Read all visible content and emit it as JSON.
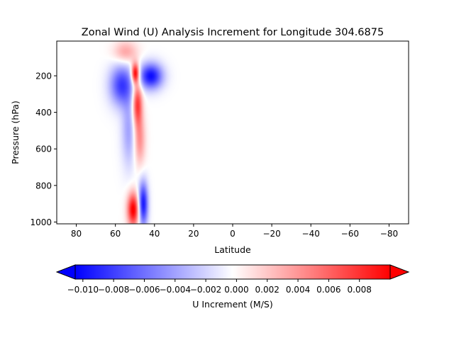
{
  "chart_data": {
    "type": "heatmap",
    "title": "Zonal Wind (U) Analysis Increment for Longitude 304.6875",
    "xlabel": "Latitude",
    "ylabel": "Pressure (hPa)",
    "xlim": [
      90,
      -90
    ],
    "ylim": [
      1010,
      10
    ],
    "x_ticks": [
      80,
      60,
      40,
      20,
      0,
      -20,
      -40,
      -60,
      -80
    ],
    "x_tick_labels": [
      "80",
      "60",
      "40",
      "20",
      "0",
      "−20",
      "−40",
      "−60",
      "−80"
    ],
    "y_ticks": [
      200,
      400,
      600,
      800,
      1000
    ],
    "y_tick_labels": [
      "200",
      "400",
      "600",
      "800",
      "1000"
    ],
    "colormap": "bwr",
    "colorbar": {
      "label": "U Increment (M/S)",
      "range": [
        -0.0105,
        0.01
      ],
      "extend": "both",
      "ticks": [
        -0.01,
        -0.008,
        -0.006,
        -0.004,
        -0.002,
        0.0,
        0.002,
        0.004,
        0.006,
        0.008
      ],
      "tick_labels": [
        "−0.010",
        "−0.008",
        "−0.006",
        "−0.004",
        "−0.002",
        "0.000",
        "0.002",
        "0.004",
        "0.006",
        "0.008"
      ]
    },
    "features": [
      {
        "sign": "positive",
        "lat_center": 50,
        "lat_width": 2.0,
        "p_center": 185,
        "p_width": 55,
        "peak": 0.012
      },
      {
        "sign": "positive",
        "lat_center": 49,
        "lat_width": 2.5,
        "p_center": 350,
        "p_width": 120,
        "peak": 0.009
      },
      {
        "sign": "positive",
        "lat_center": 48,
        "lat_width": 3.0,
        "p_center": 550,
        "p_width": 140,
        "peak": 0.005
      },
      {
        "sign": "positive",
        "lat_center": 51,
        "lat_width": 3.0,
        "p_center": 930,
        "p_width": 90,
        "peak": 0.011
      },
      {
        "sign": "positive",
        "lat_center": 55,
        "lat_width": 6.0,
        "p_center": 70,
        "p_width": 60,
        "peak": 0.004
      },
      {
        "sign": "negative",
        "lat_center": 57,
        "lat_width": 6.0,
        "p_center": 250,
        "p_width": 110,
        "peak": 0.008
      },
      {
        "sign": "negative",
        "lat_center": 53,
        "lat_width": 4.0,
        "p_center": 500,
        "p_width": 200,
        "peak": 0.004
      },
      {
        "sign": "negative",
        "lat_center": 42,
        "lat_width": 6.0,
        "p_center": 200,
        "p_width": 70,
        "peak": 0.01
      },
      {
        "sign": "negative",
        "lat_center": 46,
        "lat_width": 2.5,
        "p_center": 900,
        "p_width": 120,
        "peak": 0.01
      }
    ]
  }
}
